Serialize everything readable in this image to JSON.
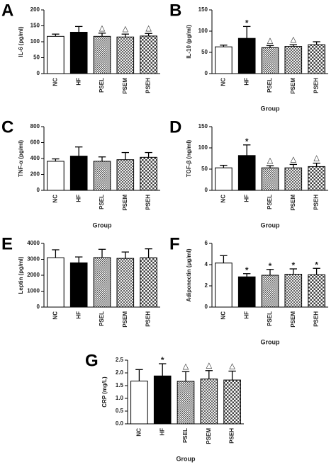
{
  "chart_data": [
    {
      "type": "bar",
      "label": "A",
      "ylabel": "IL-6 (pg/ml)",
      "categories": [
        "NC",
        "HF",
        "PSEL",
        "PSEM",
        "PSEH"
      ],
      "values": [
        117,
        130,
        117,
        115,
        118
      ],
      "errors": [
        7,
        18,
        10,
        9,
        8
      ],
      "annotations": [
        null,
        null,
        "△",
        "△",
        "△"
      ],
      "bar_styles": [
        "white",
        "black",
        "check-small",
        "check-medium",
        "check-large"
      ],
      "ylim": [
        0,
        200
      ],
      "yticks": [
        0,
        50,
        100,
        150,
        200
      ]
    },
    {
      "type": "bar",
      "label": "B",
      "ylabel": "IL-10 (pg/ml)",
      "xlabel": "Group",
      "categories": [
        "NC",
        "HF",
        "PSEL",
        "PSEM",
        "PSEH"
      ],
      "values": [
        63,
        83,
        61,
        64,
        68
      ],
      "errors": [
        4,
        28,
        5,
        4,
        7
      ],
      "annotations": [
        null,
        "*",
        "△",
        "△",
        null
      ],
      "bar_styles": [
        "white",
        "black",
        "check-small",
        "check-medium",
        "check-large"
      ],
      "ylim": [
        0,
        150
      ],
      "yticks": [
        0,
        50,
        100,
        150
      ]
    },
    {
      "type": "bar",
      "label": "C",
      "ylabel": "TNF-α (pg/ml)",
      "xlabel": "Group",
      "categories": [
        "NC",
        "HF",
        "PSEL",
        "PSEM",
        "PSEH"
      ],
      "values": [
        365,
        430,
        365,
        385,
        415
      ],
      "errors": [
        30,
        115,
        55,
        90,
        60
      ],
      "annotations": [
        null,
        null,
        null,
        null,
        null
      ],
      "bar_styles": [
        "white",
        "black",
        "check-small",
        "check-medium",
        "check-large"
      ],
      "ylim": [
        0,
        800
      ],
      "yticks": [
        0,
        200,
        400,
        600,
        800
      ]
    },
    {
      "type": "bar",
      "label": "D",
      "ylabel": "TGF-β (ng/ml)",
      "xlabel": "Group",
      "categories": [
        "NC",
        "HF",
        "PSEL",
        "PSEM",
        "PSEH"
      ],
      "values": [
        53,
        82,
        53,
        53,
        56
      ],
      "errors": [
        6,
        25,
        5,
        8,
        8
      ],
      "annotations": [
        null,
        "*",
        "△",
        "△",
        "△"
      ],
      "bar_styles": [
        "white",
        "black",
        "check-small",
        "check-medium",
        "check-large"
      ],
      "ylim": [
        0,
        150
      ],
      "yticks": [
        0,
        50,
        100,
        150
      ]
    },
    {
      "type": "bar",
      "label": "E",
      "ylabel": "Leptin (pg/ml)",
      "categories": [
        "NC",
        "HF",
        "PSEL",
        "PSEM",
        "PSEH"
      ],
      "values": [
        3100,
        2780,
        3110,
        3060,
        3100
      ],
      "errors": [
        500,
        370,
        520,
        400,
        560
      ],
      "annotations": [
        null,
        null,
        null,
        null,
        null
      ],
      "bar_styles": [
        "white",
        "black",
        "check-small",
        "check-medium",
        "check-large"
      ],
      "ylim": [
        0,
        4000
      ],
      "yticks": [
        0,
        1000,
        2000,
        3000,
        4000
      ]
    },
    {
      "type": "bar",
      "label": "F",
      "ylabel": "Adiponectin (μg/ml)",
      "xlabel": "Group",
      "categories": [
        "NC",
        "HF",
        "PSEL",
        "PSEM",
        "PSEH"
      ],
      "values": [
        4.15,
        2.85,
        3.0,
        3.1,
        3.05
      ],
      "errors": [
        0.7,
        0.3,
        0.55,
        0.5,
        0.6
      ],
      "annotations": [
        null,
        "*",
        "*",
        "*",
        "*"
      ],
      "bar_styles": [
        "white",
        "black",
        "check-small",
        "check-medium",
        "check-large"
      ],
      "ylim": [
        0,
        6
      ],
      "yticks": [
        0,
        2,
        4,
        6
      ]
    },
    {
      "type": "bar",
      "label": "G",
      "ylabel": "CRP (mg/L)",
      "xlabel": "Group",
      "categories": [
        "NC",
        "HF",
        "PSEL",
        "PSEM",
        "PSEH"
      ],
      "values": [
        1.68,
        1.88,
        1.67,
        1.76,
        1.72
      ],
      "errors": [
        0.45,
        0.48,
        0.38,
        0.33,
        0.35
      ],
      "annotations": [
        null,
        "*",
        "△",
        "△",
        "△"
      ],
      "bar_styles": [
        "white",
        "black",
        "check-small",
        "check-medium",
        "check-large"
      ],
      "ylim": [
        0,
        2.5
      ],
      "yticks": [
        {
          "value": 0,
          "label": "0.0"
        },
        0.5,
        {
          "value": 1,
          "label": "1.0"
        },
        1.5,
        {
          "value": 2,
          "label": "2.0"
        },
        2.5
      ]
    }
  ]
}
